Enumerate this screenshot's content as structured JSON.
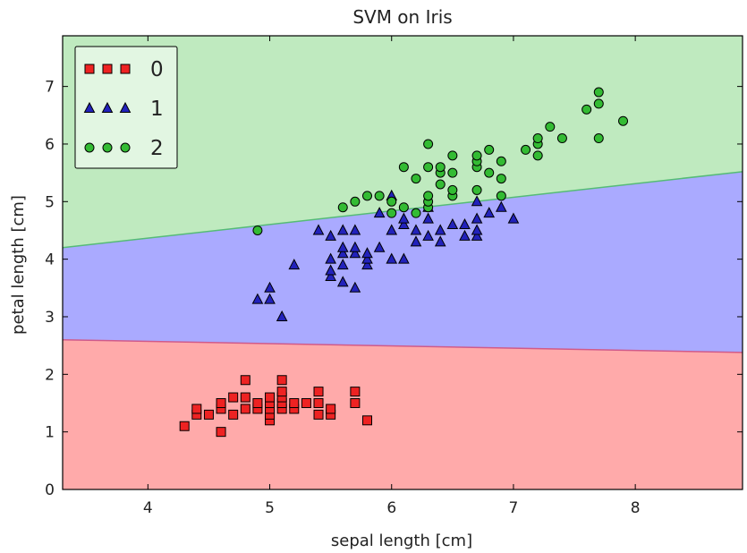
{
  "chart_data": {
    "type": "scatter",
    "title": "SVM on Iris",
    "xlabel": "sepal length [cm]",
    "ylabel": "petal length [cm]",
    "xlim": [
      3.3,
      8.88
    ],
    "ylim": [
      0,
      7.88
    ],
    "xticks": [
      4,
      5,
      6,
      7,
      8
    ],
    "yticks": [
      0,
      1,
      2,
      3,
      4,
      5,
      6,
      7
    ],
    "grid": false,
    "legend_position": "top-left",
    "regions": [
      {
        "class": "0",
        "color": "#ffaaaa",
        "below_boundary": "b01"
      },
      {
        "class": "1",
        "color": "#aaaaff",
        "between": [
          "b01",
          "b12"
        ]
      },
      {
        "class": "2",
        "color": "#bfeabf",
        "above_boundary": "b12"
      }
    ],
    "boundaries": {
      "b01": {
        "points": [
          [
            3.3,
            2.6
          ],
          [
            8.88,
            2.38
          ]
        ],
        "color": "#d05a8a"
      },
      "b12": {
        "points": [
          [
            3.3,
            4.2
          ],
          [
            8.88,
            5.52
          ]
        ],
        "color": "#55bb77"
      }
    },
    "series": [
      {
        "name": "0",
        "marker": "square",
        "color": "#ee2222",
        "points": [
          [
            4.3,
            1.1
          ],
          [
            4.4,
            1.3
          ],
          [
            4.4,
            1.4
          ],
          [
            4.5,
            1.3
          ],
          [
            4.6,
            1.0
          ],
          [
            4.6,
            1.4
          ],
          [
            4.6,
            1.5
          ],
          [
            4.7,
            1.3
          ],
          [
            4.7,
            1.6
          ],
          [
            4.8,
            1.4
          ],
          [
            4.8,
            1.6
          ],
          [
            4.8,
            1.9
          ],
          [
            4.9,
            1.4
          ],
          [
            4.9,
            1.5
          ],
          [
            5.0,
            1.2
          ],
          [
            5.0,
            1.3
          ],
          [
            5.0,
            1.4
          ],
          [
            5.0,
            1.5
          ],
          [
            5.0,
            1.6
          ],
          [
            5.1,
            1.4
          ],
          [
            5.1,
            1.5
          ],
          [
            5.1,
            1.6
          ],
          [
            5.1,
            1.7
          ],
          [
            5.1,
            1.9
          ],
          [
            5.2,
            1.4
          ],
          [
            5.2,
            1.5
          ],
          [
            5.3,
            1.5
          ],
          [
            5.4,
            1.3
          ],
          [
            5.4,
            1.5
          ],
          [
            5.4,
            1.7
          ],
          [
            5.5,
            1.3
          ],
          [
            5.5,
            1.4
          ],
          [
            5.7,
            1.5
          ],
          [
            5.7,
            1.7
          ],
          [
            5.8,
            1.2
          ]
        ]
      },
      {
        "name": "1",
        "marker": "triangle",
        "color": "#2222bb",
        "points": [
          [
            4.9,
            3.3
          ],
          [
            5.0,
            3.3
          ],
          [
            5.0,
            3.5
          ],
          [
            5.1,
            3.0
          ],
          [
            5.2,
            3.9
          ],
          [
            5.4,
            4.5
          ],
          [
            5.5,
            3.7
          ],
          [
            5.5,
            3.8
          ],
          [
            5.5,
            4.0
          ],
          [
            5.5,
            4.4
          ],
          [
            5.6,
            3.6
          ],
          [
            5.6,
            3.9
          ],
          [
            5.6,
            4.1
          ],
          [
            5.6,
            4.2
          ],
          [
            5.6,
            4.5
          ],
          [
            5.7,
            3.5
          ],
          [
            5.7,
            4.1
          ],
          [
            5.7,
            4.2
          ],
          [
            5.7,
            4.5
          ],
          [
            5.8,
            3.9
          ],
          [
            5.8,
            4.0
          ],
          [
            5.8,
            4.1
          ],
          [
            5.9,
            4.2
          ],
          [
            5.9,
            4.8
          ],
          [
            6.0,
            4.0
          ],
          [
            6.0,
            4.5
          ],
          [
            6.0,
            5.1
          ],
          [
            6.1,
            4.0
          ],
          [
            6.1,
            4.6
          ],
          [
            6.1,
            4.7
          ],
          [
            6.2,
            4.3
          ],
          [
            6.2,
            4.5
          ],
          [
            6.3,
            4.4
          ],
          [
            6.3,
            4.7
          ],
          [
            6.3,
            4.9
          ],
          [
            6.4,
            4.3
          ],
          [
            6.4,
            4.5
          ],
          [
            6.5,
            4.6
          ],
          [
            6.6,
            4.4
          ],
          [
            6.6,
            4.6
          ],
          [
            6.7,
            4.4
          ],
          [
            6.7,
            4.5
          ],
          [
            6.7,
            4.7
          ],
          [
            6.7,
            5.0
          ],
          [
            6.8,
            4.8
          ],
          [
            6.9,
            4.9
          ],
          [
            7.0,
            4.7
          ]
        ]
      },
      {
        "name": "2",
        "marker": "circle",
        "color": "#33bb33",
        "points": [
          [
            4.9,
            4.5
          ],
          [
            5.6,
            4.9
          ],
          [
            5.7,
            5.0
          ],
          [
            5.8,
            5.1
          ],
          [
            5.9,
            5.1
          ],
          [
            6.0,
            4.8
          ],
          [
            6.0,
            5.0
          ],
          [
            6.1,
            4.9
          ],
          [
            6.1,
            5.6
          ],
          [
            6.2,
            4.8
          ],
          [
            6.2,
            5.4
          ],
          [
            6.3,
            4.9
          ],
          [
            6.3,
            5.0
          ],
          [
            6.3,
            5.1
          ],
          [
            6.3,
            5.6
          ],
          [
            6.3,
            6.0
          ],
          [
            6.4,
            5.3
          ],
          [
            6.4,
            5.5
          ],
          [
            6.4,
            5.6
          ],
          [
            6.5,
            5.1
          ],
          [
            6.5,
            5.2
          ],
          [
            6.5,
            5.5
          ],
          [
            6.5,
            5.8
          ],
          [
            6.7,
            5.2
          ],
          [
            6.7,
            5.6
          ],
          [
            6.7,
            5.7
          ],
          [
            6.7,
            5.8
          ],
          [
            6.8,
            5.5
          ],
          [
            6.8,
            5.9
          ],
          [
            6.9,
            5.1
          ],
          [
            6.9,
            5.4
          ],
          [
            6.9,
            5.7
          ],
          [
            7.1,
            5.9
          ],
          [
            7.2,
            5.8
          ],
          [
            7.2,
            6.0
          ],
          [
            7.2,
            6.1
          ],
          [
            7.3,
            6.3
          ],
          [
            7.4,
            6.1
          ],
          [
            7.6,
            6.6
          ],
          [
            7.7,
            6.1
          ],
          [
            7.7,
            6.7
          ],
          [
            7.7,
            6.9
          ],
          [
            7.9,
            6.4
          ]
        ]
      }
    ]
  }
}
